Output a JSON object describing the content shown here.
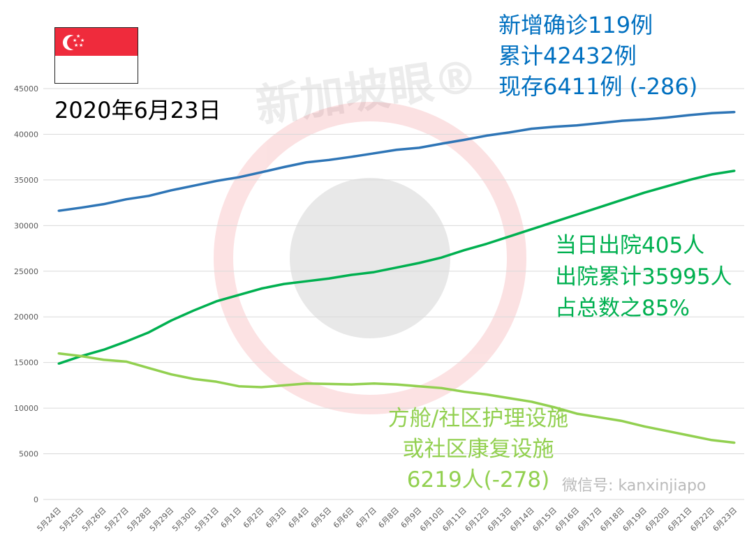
{
  "title_date": "2020年6月23日",
  "flag": "singapore-flag",
  "watermark": {
    "text": "新加坡眼®",
    "wechat": "微信号: kanxinjiapo"
  },
  "annotations": {
    "confirmed": [
      "新增确诊119例",
      "累计42432例",
      "现存6411例 (-286)"
    ],
    "discharged": [
      "当日出院405人",
      "出院累计35995人",
      "占总数之85%"
    ],
    "community": [
      "方舱/社区护理设施",
      "或社区康复设施",
      "6219人(-278)"
    ]
  },
  "colors": {
    "confirmed": "#2e75b6",
    "discharged": "#00b050",
    "community": "#92d050",
    "grid": "#d9d9d9"
  },
  "chart_data": {
    "type": "line",
    "title": "",
    "xlabel": "",
    "ylabel": "",
    "ylim": [
      0,
      45000
    ],
    "yticks": [
      0,
      5000,
      10000,
      15000,
      20000,
      25000,
      30000,
      35000,
      40000,
      45000
    ],
    "grid": true,
    "categories": [
      "5月24日",
      "5月25日",
      "5月26日",
      "5月27日",
      "5月28日",
      "5月29日",
      "5月30日",
      "5月31日",
      "6月1日",
      "6月2日",
      "6月3日",
      "6月4日",
      "6月5日",
      "6月6日",
      "6月7日",
      "6月8日",
      "6月9日",
      "6月10日",
      "6月11日",
      "6月12日",
      "6月13日",
      "6月14日",
      "6月15日",
      "6月16日",
      "6月17日",
      "6月18日",
      "6月19日",
      "6月20日",
      "6月21日",
      "6月22日",
      "6月23日"
    ],
    "series": [
      {
        "key": "confirmed",
        "values": [
          31616,
          31960,
          32343,
          32876,
          33249,
          33860,
          34366,
          34884,
          35292,
          35836,
          36405,
          36922,
          37183,
          37527,
          37910,
          38296,
          38514,
          38965,
          39387,
          39850,
          40197,
          40604,
          40818,
          40969,
          41216,
          41473,
          41615,
          41833,
          42095,
          42313,
          42432
        ]
      },
      {
        "key": "discharged",
        "values": [
          14876,
          15700,
          16400,
          17300,
          18300,
          19600,
          20700,
          21700,
          22400,
          23100,
          23600,
          23900,
          24200,
          24600,
          24900,
          25400,
          25900,
          26500,
          27300,
          28000,
          28800,
          29600,
          30400,
          31200,
          32000,
          32800,
          33600,
          34300,
          35000,
          35600,
          35995
        ]
      },
      {
        "key": "community",
        "values": [
          16000,
          15700,
          15300,
          15100,
          14400,
          13700,
          13200,
          12900,
          12400,
          12300,
          12500,
          12700,
          12650,
          12600,
          12700,
          12600,
          12400,
          12200,
          11800,
          11500,
          11100,
          10700,
          10100,
          9400,
          9000,
          8600,
          8000,
          7500,
          7000,
          6500,
          6219
        ]
      }
    ]
  }
}
